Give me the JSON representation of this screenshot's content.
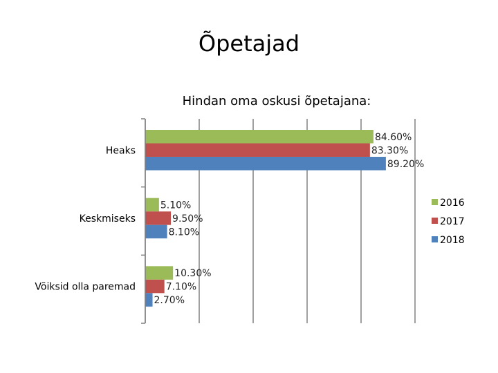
{
  "page": {
    "title": "Õpetajad"
  },
  "chart_data": {
    "type": "bar",
    "orientation": "horizontal",
    "title": "Hindan oma oskusi õpetajana:",
    "categories": [
      "Heaks",
      "Keskmiseks",
      "Võiksid olla paremad"
    ],
    "series": [
      {
        "name": "2016",
        "color": "#9bbb59",
        "values": [
          84.6,
          5.1,
          10.3
        ],
        "labels": [
          "84.60%",
          "5.10%",
          "10.30%"
        ]
      },
      {
        "name": "2017",
        "color": "#c0504d",
        "values": [
          83.3,
          9.5,
          7.1
        ],
        "labels": [
          "83.30%",
          "9.50%",
          "7.10%"
        ]
      },
      {
        "name": "2018",
        "color": "#4f81bd",
        "values": [
          89.2,
          8.1,
          2.7
        ],
        "labels": [
          "89.20%",
          "8.10%",
          "2.70%"
        ]
      }
    ],
    "xlim": [
      0,
      100
    ],
    "grid": true,
    "legend": "right"
  }
}
